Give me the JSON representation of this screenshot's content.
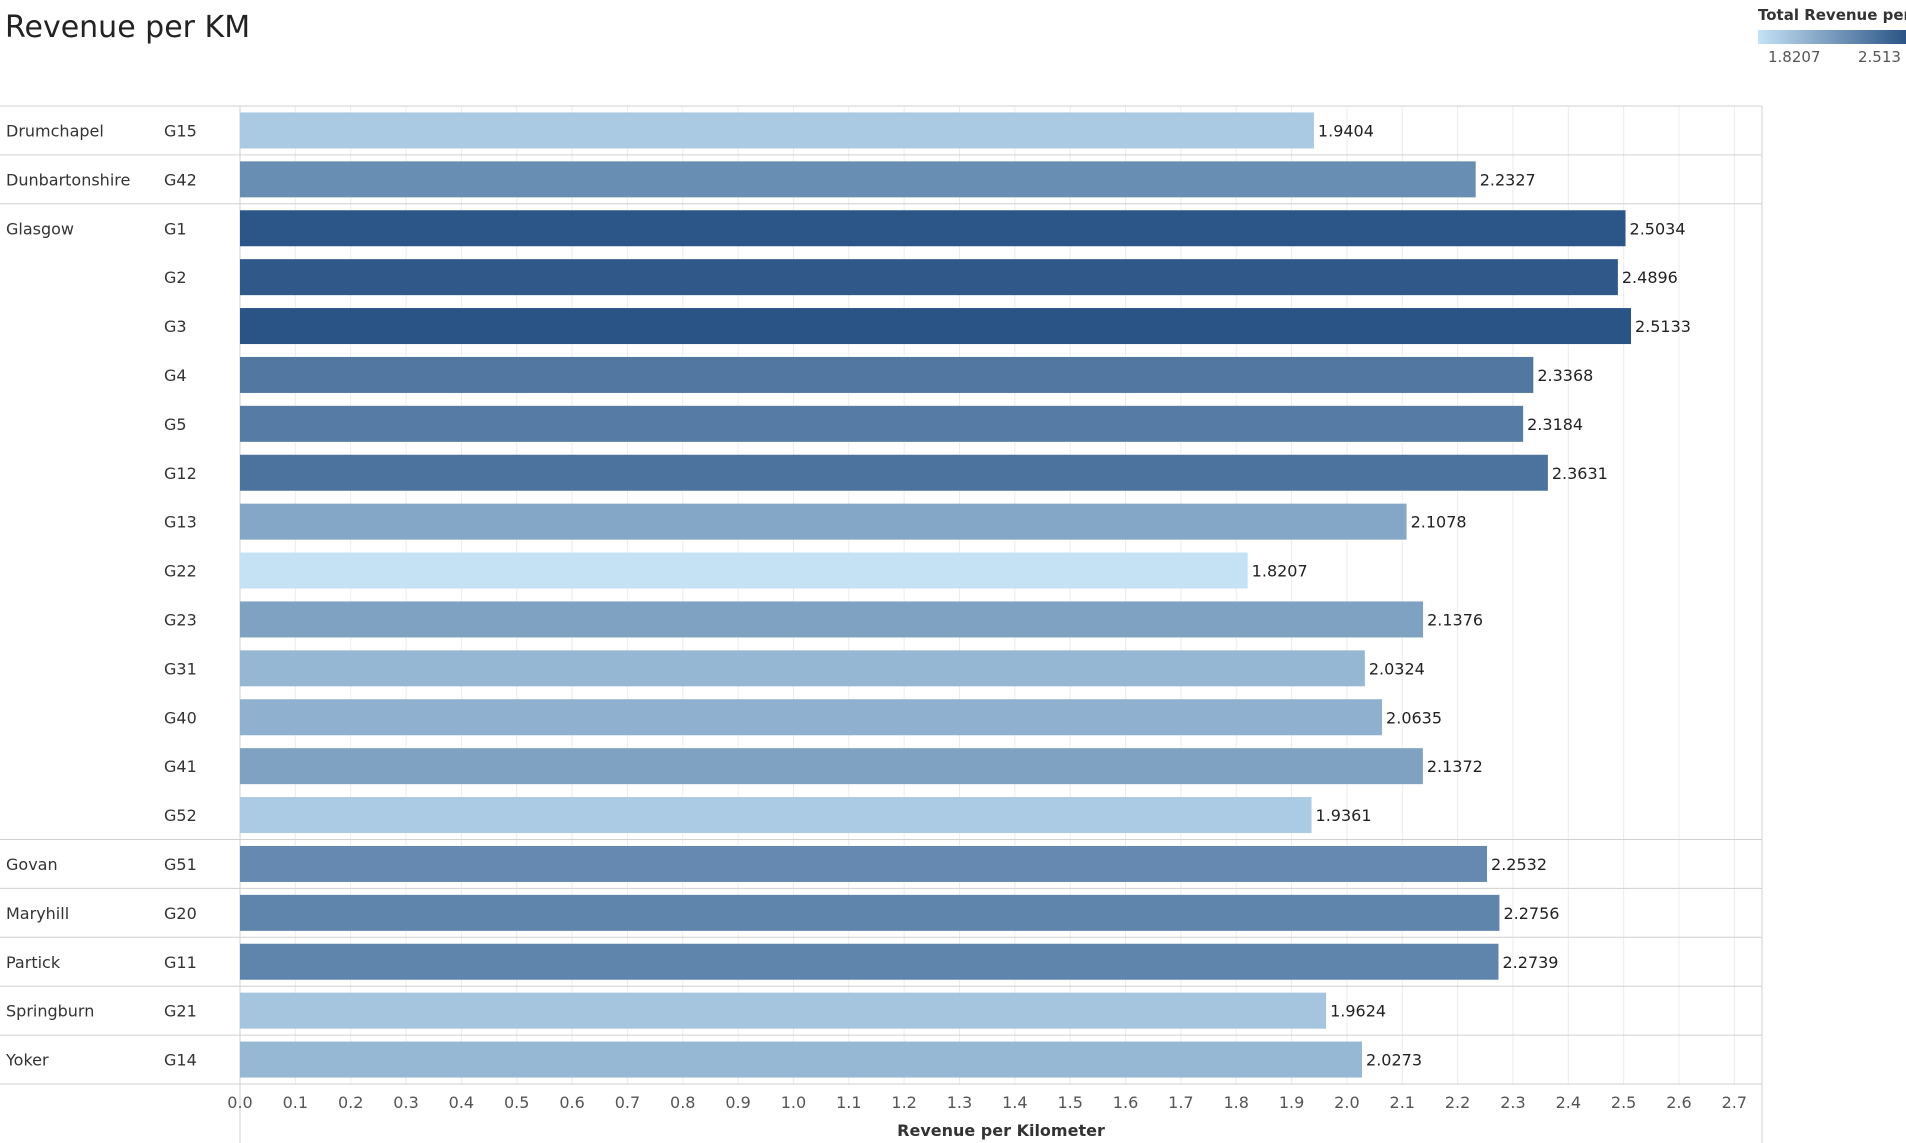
{
  "title": "Revenue per KM",
  "legend": {
    "title": "Total Revenue per",
    "min_label": "1.8207",
    "max_label": "2.513",
    "min_color": "#c5e2f5",
    "max_color": "#2b5486"
  },
  "chart_data": {
    "type": "bar",
    "orientation": "horizontal",
    "xlabel": "Revenue per Kilometer",
    "xlim": [
      0,
      2.75
    ],
    "ticks": [
      "0.0",
      "0.1",
      "0.2",
      "0.3",
      "0.4",
      "0.5",
      "0.6",
      "0.7",
      "0.8",
      "0.9",
      "1.0",
      "1.1",
      "1.2",
      "1.3",
      "1.4",
      "1.5",
      "1.6",
      "1.7",
      "1.8",
      "1.9",
      "2.0",
      "2.1",
      "2.2",
      "2.3",
      "2.4",
      "2.5",
      "2.6",
      "2.7"
    ],
    "grid": true,
    "color_encoding": "sequential blue by value",
    "groups": [
      {
        "area": "Drumchapel",
        "rows": [
          {
            "code": "G15",
            "value": 1.9404
          }
        ]
      },
      {
        "area": "Dunbartonshire",
        "rows": [
          {
            "code": "G42",
            "value": 2.2327
          }
        ]
      },
      {
        "area": "Glasgow",
        "rows": [
          {
            "code": "G1",
            "value": 2.5034
          },
          {
            "code": "G2",
            "value": 2.4896
          },
          {
            "code": "G3",
            "value": 2.5133
          },
          {
            "code": "G4",
            "value": 2.3368
          },
          {
            "code": "G5",
            "value": 2.3184
          },
          {
            "code": "G12",
            "value": 2.3631
          },
          {
            "code": "G13",
            "value": 2.1078
          },
          {
            "code": "G22",
            "value": 1.8207
          },
          {
            "code": "G23",
            "value": 2.1376
          },
          {
            "code": "G31",
            "value": 2.0324
          },
          {
            "code": "G40",
            "value": 2.0635
          },
          {
            "code": "G41",
            "value": 2.1372
          },
          {
            "code": "G52",
            "value": 1.9361
          }
        ]
      },
      {
        "area": "Govan",
        "rows": [
          {
            "code": "G51",
            "value": 2.2532
          }
        ]
      },
      {
        "area": "Maryhill",
        "rows": [
          {
            "code": "G20",
            "value": 2.2756
          }
        ]
      },
      {
        "area": "Partick",
        "rows": [
          {
            "code": "G11",
            "value": 2.2739
          }
        ]
      },
      {
        "area": "Springburn",
        "rows": [
          {
            "code": "G21",
            "value": 1.9624
          }
        ]
      },
      {
        "area": "Yoker",
        "rows": [
          {
            "code": "G14",
            "value": 2.0273
          }
        ]
      }
    ]
  }
}
